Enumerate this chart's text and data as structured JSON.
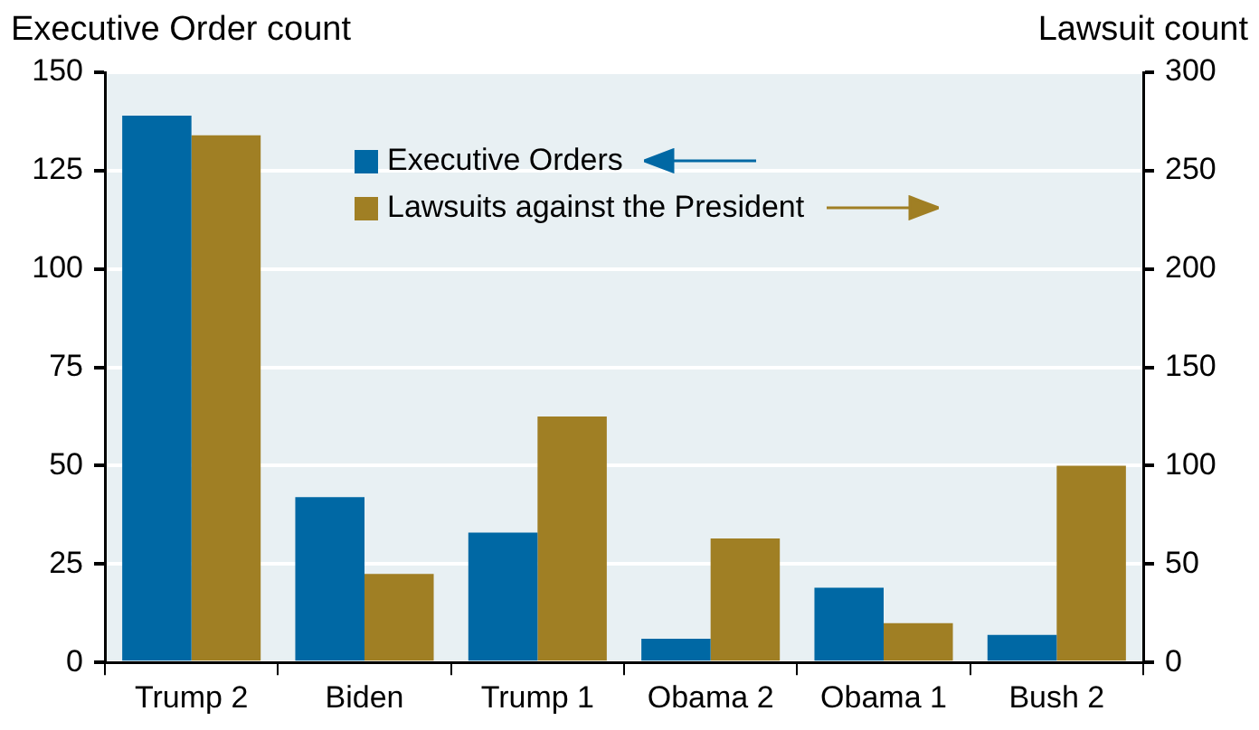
{
  "chart_data": {
    "type": "bar",
    "ylabel": "Executive Order count",
    "y2label": "Lawsuit count",
    "categories": [
      "Trump 2",
      "Biden",
      "Trump 1",
      "Obama 2",
      "Obama 1",
      "Bush 2"
    ],
    "series": [
      {
        "name": "Executive Orders",
        "color": "#0068a4",
        "values": [
          139,
          42,
          33,
          6,
          19,
          7
        ]
      },
      {
        "name": "Lawsuits against the President",
        "color": "#a07f24",
        "axis": "y2",
        "values": [
          268,
          45,
          125,
          63,
          20,
          100
        ]
      }
    ],
    "ylim": [
      0,
      150
    ],
    "yticks": [
      0,
      25,
      50,
      75,
      100,
      125,
      150
    ],
    "y2lim": [
      0,
      300
    ],
    "y2ticks": [
      0,
      50,
      100,
      150,
      200,
      250,
      300
    ],
    "grid": "y",
    "legend": "top"
  }
}
